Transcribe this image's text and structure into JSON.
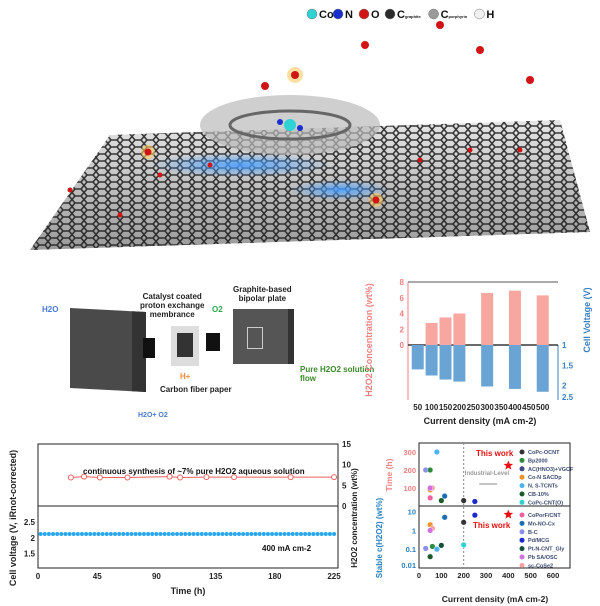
{
  "illustration": {
    "atom_legend": [
      {
        "symbol": "Co",
        "color": "#2fd3d3"
      },
      {
        "symbol": "N",
        "color": "#1a2fd0"
      },
      {
        "symbol": "O",
        "color": "#d01515"
      },
      {
        "symbol": "C",
        "sub": "graphite",
        "color": "#2a2a2a"
      },
      {
        "symbol": "C",
        "sub": "porphyrin",
        "color": "#9a9a9a"
      },
      {
        "symbol": "H",
        "color": "#f0f0f0"
      }
    ]
  },
  "device": {
    "h2o_in": "H2O",
    "o2_in": "O2",
    "membrane_label": [
      "Catalyst coated",
      "proton exchange",
      "membrance"
    ],
    "plate_label": [
      "Graphite-based",
      "bipolar plate"
    ],
    "proton": "H+",
    "carbon_paper": "Carbon fiber paper",
    "outlet": [
      "Pure H2O2 solution",
      "flow"
    ],
    "anode_out": "H2O+ O2"
  },
  "chart_data": [
    {
      "type": "bar",
      "xlabel": "Current density (mA cm-2)",
      "ylabel_top": "H2O2 Concentration (wt%)",
      "ylabel_bottom": "Cell Voltage (V)",
      "x_ticks": [
        50,
        100,
        150,
        200,
        250,
        300,
        350,
        400,
        450,
        500
      ],
      "xlim": [
        15,
        555
      ],
      "top_ylim": [
        0,
        8
      ],
      "top_yticks": [
        0,
        2,
        4,
        6,
        8
      ],
      "bottom_ylim": [
        1,
        2.5
      ],
      "bottom_yticks": [
        1,
        1.5,
        2,
        2.5
      ],
      "concentration": {
        "x": [
          100,
          150,
          200,
          300,
          400,
          500
        ],
        "values": [
          2.8,
          3.5,
          4.0,
          6.6,
          6.9,
          6.3
        ],
        "color": "#f08080"
      },
      "voltage": {
        "x": [
          50,
          100,
          150,
          200,
          300,
          400,
          500
        ],
        "values": [
          1.6,
          1.75,
          1.85,
          1.9,
          2.02,
          2.08,
          2.15
        ],
        "color": "#3a80c0"
      }
    },
    {
      "type": "line",
      "annotation": "continuous synthesis of ~7% pure H2O2 aqueous solution",
      "current_label": "400 mA cm-2",
      "xlabel": "Time (h)",
      "ylabel_left": "Cell voltage (V, iRnot-corrected)",
      "ylabel_right": "H2O2 concentration (wt%)",
      "xlim": [
        0,
        228
      ],
      "x_ticks": [
        0,
        45,
        90,
        135,
        180,
        225
      ],
      "conc_ylim": [
        0,
        15
      ],
      "conc_yticks": [
        0,
        5,
        10,
        15
      ],
      "volt_ylim": [
        1.05,
        3.0
      ],
      "volt_yticks": [
        1.5,
        2,
        2.5
      ],
      "concentration": {
        "x": [
          25,
          35,
          47,
          68,
          100,
          108,
          128,
          149,
          192,
          225
        ],
        "values": [
          6.9,
          7.1,
          6.9,
          6.9,
          7.1,
          6.9,
          7.0,
          7.0,
          7.0,
          7.0
        ],
        "color": "#f06060"
      },
      "voltage": {
        "x_start": 2,
        "x_end": 225,
        "count": 72,
        "value": 2.12,
        "color": "#29a8f0"
      }
    },
    {
      "type": "scatter",
      "xlabel": "Current density (mA cm-2)",
      "ylabel_top": "Time (h)",
      "ylabel_bottom": "Stable c(H2O2) (wt%)",
      "xlim": [
        0,
        676
      ],
      "x_ticks": [
        0,
        100,
        200,
        300,
        400,
        500,
        600
      ],
      "top_ylim": [
        0,
        350
      ],
      "top_yticks": [
        100,
        200,
        300
      ],
      "bottom_ylim": [
        0.01,
        20
      ],
      "bottom_yticks": [
        0.01,
        0.1,
        1,
        10
      ],
      "bottom_scale": "log",
      "industrial_line_x": 200,
      "industrial_label": "Industrial-Level",
      "this_work_label": "This work",
      "legend_top": [
        {
          "name": "CoPc-OCNT",
          "color": "#333333"
        },
        {
          "name": "Bp2000",
          "color": "#2e8b3e"
        },
        {
          "name": "AC(HNO3)+VGCF",
          "color": "#404a88"
        },
        {
          "name": "Co-N SACDp",
          "color": "#f0902a"
        },
        {
          "name": "N, S-TCNTs",
          "color": "#4ab4f0"
        },
        {
          "name": "CB-10%",
          "color": "#1c5a2c"
        },
        {
          "name": "CoPc-CNT(O)",
          "color": "#30d0d0"
        }
      ],
      "legend_bottom": [
        {
          "name": "CoPorF/CNT",
          "color": "#f060a0"
        },
        {
          "name": "Mn-NO-Cx",
          "color": "#1c6eb4"
        },
        {
          "name": "B-C",
          "color": "#8a8ef0"
        },
        {
          "name": "Pd/MCG",
          "color": "#1a2ad0"
        },
        {
          "name": "Pt-N-CNT_Gly",
          "color": "#14503a"
        },
        {
          "name": "Pb SA/OSC",
          "color": "#d070e0"
        },
        {
          "name": "sc-CoSe2",
          "color": "#f8a0a0"
        }
      ],
      "top_points": [
        {
          "x": 50,
          "y": 45,
          "color": "#f060a0"
        },
        {
          "x": 50,
          "y": 90,
          "color": "#f0902a"
        },
        {
          "x": 60,
          "y": 100,
          "color": "#f8a0a0"
        },
        {
          "x": 50,
          "y": 100,
          "color": "#d070e0"
        },
        {
          "x": 30,
          "y": 200,
          "color": "#8a8ef0"
        },
        {
          "x": 50,
          "y": 200,
          "color": "#2e8b3e"
        },
        {
          "x": 80,
          "y": 300,
          "color": "#4ab4f0"
        },
        {
          "x": 100,
          "y": 30,
          "color": "#1c5a2c"
        },
        {
          "x": 115,
          "y": 55,
          "color": "#1c6eb4"
        },
        {
          "x": 200,
          "y": 30,
          "color": "#333333"
        },
        {
          "x": 250,
          "y": 25,
          "color": "#1a2ad0"
        }
      ],
      "top_this_work": {
        "x": 400,
        "y": 225,
        "color": "#e81010"
      },
      "bottom_points": [
        {
          "x": 115,
          "y": 5,
          "color": "#1c6eb4"
        },
        {
          "x": 250,
          "y": 6.5,
          "color": "#1a2ad0"
        },
        {
          "x": 200,
          "y": 2.7,
          "color": "#333333"
        },
        {
          "x": 50,
          "y": 2,
          "color": "#f0902a"
        },
        {
          "x": 60,
          "y": 1.3,
          "color": "#f8a0a0"
        },
        {
          "x": 50,
          "y": 1,
          "color": "#d070e0"
        },
        {
          "x": 30,
          "y": 0.11,
          "color": "#8a8ef0"
        },
        {
          "x": 60,
          "y": 0.14,
          "color": "#2e8b3e"
        },
        {
          "x": 80,
          "y": 0.1,
          "color": "#4ab4f0"
        },
        {
          "x": 100,
          "y": 0.16,
          "color": "#14503a"
        },
        {
          "x": 50,
          "y": 0.04,
          "color": "#1c5a2c"
        },
        {
          "x": 200,
          "y": 0.17,
          "color": "#30d0d0"
        }
      ],
      "bottom_this_work": {
        "x": 400,
        "y": 7,
        "color": "#e81010"
      }
    }
  ]
}
